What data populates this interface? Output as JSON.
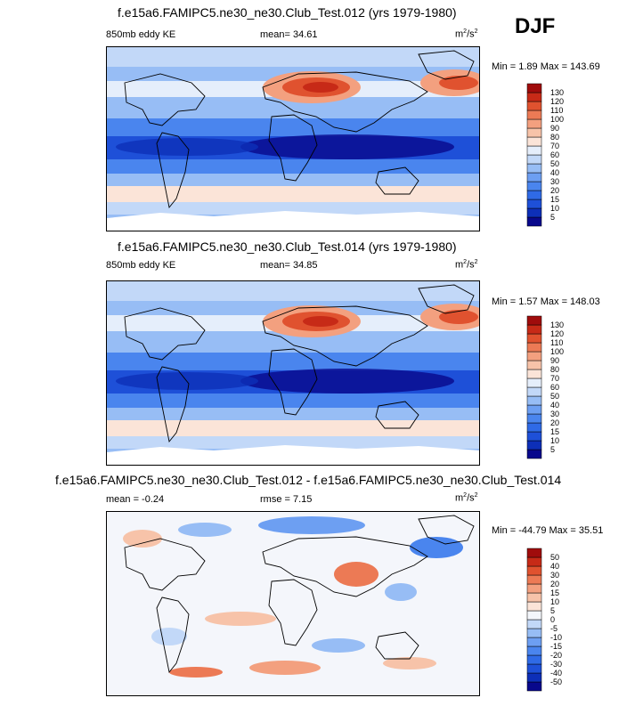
{
  "season_label": "DJF",
  "panels": [
    {
      "title": "f.e15a6.FAMIPC5.ne30_ne30.Club_Test.012 (yrs 1979-1980)",
      "left_label": "850mb eddy KE",
      "center_label": "mean=  34.61",
      "units_base": "m",
      "units_sup1": "2",
      "units_mid": "/s",
      "units_sup2": "2",
      "minmax": "Min =  1.89 Max = 143.69"
    },
    {
      "title": "f.e15a6.FAMIPC5.ne30_ne30.Club_Test.014 (yrs 1979-1980)",
      "left_label": "850mb eddy KE",
      "center_label": "mean=  34.85",
      "units_base": "m",
      "units_sup1": "2",
      "units_mid": "/s",
      "units_sup2": "2",
      "minmax": "Min =  1.57 Max = 148.03"
    },
    {
      "title": "f.e15a6.FAMIPC5.ne30_ne30.Club_Test.012 - f.e15a6.FAMIPC5.ne30_ne30.Club_Test.014",
      "left_label": "mean =  -0.24",
      "center_label": "rmse =   7.15",
      "units_base": "m",
      "units_sup1": "2",
      "units_mid": "/s",
      "units_sup2": "2",
      "minmax": "Min = -44.79 Max =  35.51"
    }
  ],
  "chart_data": [
    {
      "type": "heatmap",
      "title": "f.e15a6.FAMIPC5.ne30_ne30.Club_Test.012 (yrs 1979-1980)",
      "variable": "850mb eddy KE",
      "units": "m2/s2",
      "mean": 34.61,
      "min": 1.89,
      "max": 143.69,
      "colorbar_levels": [
        5,
        10,
        15,
        20,
        30,
        40,
        50,
        60,
        70,
        80,
        90,
        100,
        110,
        120,
        130
      ],
      "colorbar_colors": [
        "#08088c",
        "#0d2fb8",
        "#1e50d8",
        "#2f6ae6",
        "#4a85ee",
        "#6d9ff2",
        "#97bdf5",
        "#c2d8f8",
        "#e5eefb",
        "#fbe4d8",
        "#f7c3a9",
        "#f3a07f",
        "#ec7a55",
        "#e0522f",
        "#c72a17",
        "#a00c0c"
      ]
    },
    {
      "type": "heatmap",
      "title": "f.e15a6.FAMIPC5.ne30_ne30.Club_Test.014 (yrs 1979-1980)",
      "variable": "850mb eddy KE",
      "units": "m2/s2",
      "mean": 34.85,
      "min": 1.57,
      "max": 148.03,
      "colorbar_levels": [
        5,
        10,
        15,
        20,
        30,
        40,
        50,
        60,
        70,
        80,
        90,
        100,
        110,
        120,
        130
      ],
      "colorbar_colors": [
        "#08088c",
        "#0d2fb8",
        "#1e50d8",
        "#2f6ae6",
        "#4a85ee",
        "#6d9ff2",
        "#97bdf5",
        "#c2d8f8",
        "#e5eefb",
        "#fbe4d8",
        "#f7c3a9",
        "#f3a07f",
        "#ec7a55",
        "#e0522f",
        "#c72a17",
        "#a00c0c"
      ]
    },
    {
      "type": "heatmap",
      "title": "f.e15a6.FAMIPC5.ne30_ne30.Club_Test.012 - f.e15a6.FAMIPC5.ne30_ne30.Club_Test.014",
      "units": "m2/s2",
      "mean": -0.24,
      "rmse": 7.15,
      "min": -44.79,
      "max": 35.51,
      "colorbar_levels": [
        -50,
        -40,
        -30,
        -20,
        -15,
        -10,
        -5,
        0,
        5,
        10,
        15,
        20,
        30,
        40,
        50
      ],
      "colorbar_colors": [
        "#08088c",
        "#0d2fb8",
        "#1e50d8",
        "#2f6ae6",
        "#4a85ee",
        "#6d9ff2",
        "#97bdf5",
        "#c2d8f8",
        "#f3f6fb",
        "#fbe4d8",
        "#f7c3a9",
        "#f3a07f",
        "#ec7a55",
        "#e0522f",
        "#c72a17",
        "#a00c0c"
      ]
    }
  ]
}
